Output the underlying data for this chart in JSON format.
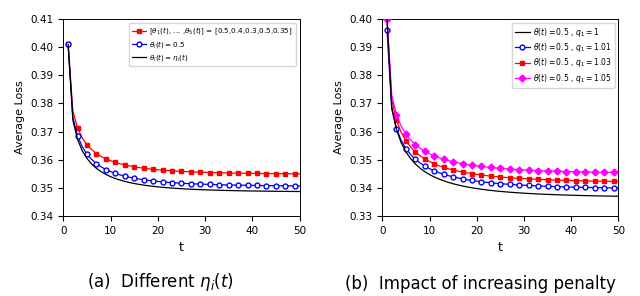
{
  "t_max": 50,
  "subplot_a": {
    "ylim": [
      0.34,
      0.41
    ],
    "yticks": [
      0.34,
      0.35,
      0.36,
      0.37,
      0.38,
      0.39,
      0.4,
      0.41
    ],
    "xlabel": "t",
    "ylabel": "Average Loss",
    "lines": [
      {
        "label": "[$\\theta_1(t)$, ... ,$\\theta_5(t)$] = [0.5,0.4,0.3,0.5,0.35]",
        "color": "red",
        "marker": "s",
        "markersize": 3.5,
        "linewidth": 0.9,
        "residual": 0.3548,
        "init": 0.401,
        "alpha": 0.72,
        "beta": 0.52
      },
      {
        "label": "$\\theta_i(t) = 0.5$",
        "color": "blue",
        "marker": "o",
        "markersize": 3.5,
        "linewidth": 0.9,
        "residual": 0.3505,
        "init": 0.401,
        "alpha": 0.72,
        "beta": 0.52
      },
      {
        "label": "$\\theta_i(t) = \\eta_i(t)$",
        "color": "black",
        "marker": null,
        "markersize": 0,
        "linewidth": 0.9,
        "residual": 0.3485,
        "init": 0.401,
        "alpha": 0.72,
        "beta": 0.52
      }
    ]
  },
  "subplot_b": {
    "ylim": [
      0.33,
      0.4
    ],
    "yticks": [
      0.33,
      0.34,
      0.35,
      0.36,
      0.37,
      0.38,
      0.39,
      0.4
    ],
    "xlabel": "t",
    "ylabel": "Average Loss",
    "lines": [
      {
        "label": "$\\theta(t) = 0.5$ , $q_1 = 1$",
        "color": "black",
        "marker": null,
        "markersize": 0,
        "linewidth": 0.9,
        "residual": 0.3365,
        "init": 0.4,
        "alpha": 0.68,
        "beta": 0.5
      },
      {
        "label": "$\\theta(t) = 0.5$ , $q_1 = 1.01$",
        "color": "blue",
        "marker": "o",
        "markersize": 3.5,
        "linewidth": 0.9,
        "residual": 0.3395,
        "init": 0.396,
        "alpha": 0.68,
        "beta": 0.5
      },
      {
        "label": "$\\theta(t) = 0.5$ , $q_1 = 1.03$",
        "color": "red",
        "marker": "s",
        "markersize": 3.5,
        "linewidth": 0.9,
        "residual": 0.3418,
        "init": 0.4,
        "alpha": 0.68,
        "beta": 0.5
      },
      {
        "label": "$\\theta(t) = 0.5$ , $q_1 = 1.05$",
        "color": "magenta",
        "marker": "D",
        "markersize": 3.5,
        "linewidth": 0.9,
        "residual": 0.345,
        "init": 0.4,
        "alpha": 0.68,
        "beta": 0.5
      }
    ]
  },
  "caption_a": "(a)  Different $\\eta_i(t)$",
  "caption_b": "(b)  Impact of increasing penalty",
  "caption_fontsize": 12
}
